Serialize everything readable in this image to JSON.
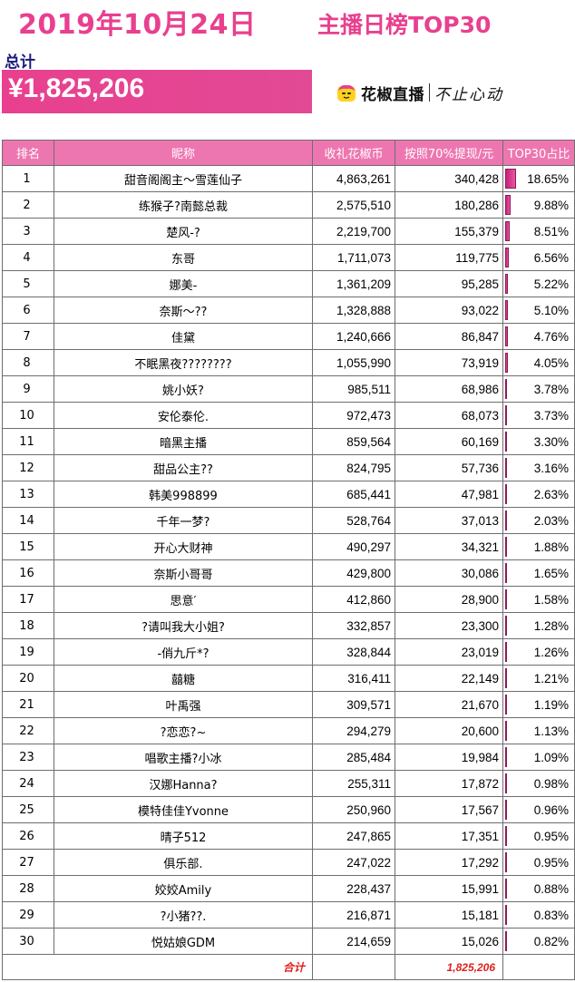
{
  "header": {
    "date_title": "2019年10月24日",
    "sub_title": "主播日榜TOP30",
    "total_label": "总计",
    "total_value": "¥1,825,206"
  },
  "brand": {
    "name": "花椒直播",
    "slogan": "不止心动",
    "logo_icon": "huajiao-logo-icon"
  },
  "colors": {
    "title_pink": "#e8408f",
    "header_row": "#ee76b0",
    "total_red": "#e0201e",
    "bar": "#c3227a"
  },
  "table": {
    "columns": [
      "排名",
      "昵称",
      "收礼花椒币",
      "按照70%提现/元",
      "TOP30占比"
    ],
    "rows": [
      {
        "rank": "1",
        "name": "甜音阁阁主～雪莲仙子",
        "coins": "4,863,261",
        "cash": "340,428",
        "share": "18.65%",
        "share_value": 18.65
      },
      {
        "rank": "2",
        "name": "练猴子?南懿总裁",
        "coins": "2,575,510",
        "cash": "180,286",
        "share": "9.88%",
        "share_value": 9.88
      },
      {
        "rank": "3",
        "name": "楚风-?",
        "coins": "2,219,700",
        "cash": "155,379",
        "share": "8.51%",
        "share_value": 8.51
      },
      {
        "rank": "4",
        "name": "东哥",
        "coins": "1,711,073",
        "cash": "119,775",
        "share": "6.56%",
        "share_value": 6.56
      },
      {
        "rank": "5",
        "name": "娜美-",
        "coins": "1,361,209",
        "cash": "95,285",
        "share": "5.22%",
        "share_value": 5.22
      },
      {
        "rank": "6",
        "name": "奈斯～??",
        "coins": "1,328,888",
        "cash": "93,022",
        "share": "5.10%",
        "share_value": 5.1
      },
      {
        "rank": "7",
        "name": "佳黛",
        "coins": "1,240,666",
        "cash": "86,847",
        "share": "4.76%",
        "share_value": 4.76
      },
      {
        "rank": "8",
        "name": "不眠黑夜????????",
        "coins": "1,055,990",
        "cash": "73,919",
        "share": "4.05%",
        "share_value": 4.05
      },
      {
        "rank": "9",
        "name": "姚小妖?",
        "coins": "985,511",
        "cash": "68,986",
        "share": "3.78%",
        "share_value": 3.78
      },
      {
        "rank": "10",
        "name": "安伦泰伦.",
        "coins": "972,473",
        "cash": "68,073",
        "share": "3.73%",
        "share_value": 3.73
      },
      {
        "rank": "11",
        "name": "暗黑主播",
        "coins": "859,564",
        "cash": "60,169",
        "share": "3.30%",
        "share_value": 3.3
      },
      {
        "rank": "12",
        "name": "甜品公主??",
        "coins": "824,795",
        "cash": "57,736",
        "share": "3.16%",
        "share_value": 3.16
      },
      {
        "rank": "13",
        "name": "韩美998899",
        "coins": "685,441",
        "cash": "47,981",
        "share": "2.63%",
        "share_value": 2.63
      },
      {
        "rank": "14",
        "name": "千年一梦?",
        "coins": "528,764",
        "cash": "37,013",
        "share": "2.03%",
        "share_value": 2.03
      },
      {
        "rank": "15",
        "name": "开心大财神",
        "coins": "490,297",
        "cash": "34,321",
        "share": "1.88%",
        "share_value": 1.88
      },
      {
        "rank": "16",
        "name": "奈斯小哥哥",
        "coins": "429,800",
        "cash": "30,086",
        "share": "1.65%",
        "share_value": 1.65
      },
      {
        "rank": "17",
        "name": "思意′",
        "coins": "412,860",
        "cash": "28,900",
        "share": "1.58%",
        "share_value": 1.58
      },
      {
        "rank": "18",
        "name": "?请叫我大小姐?",
        "coins": "332,857",
        "cash": "23,300",
        "share": "1.28%",
        "share_value": 1.28
      },
      {
        "rank": "19",
        "name": "-俏九斤*?",
        "coins": "328,844",
        "cash": "23,019",
        "share": "1.26%",
        "share_value": 1.26
      },
      {
        "rank": "20",
        "name": "囍糖",
        "coins": "316,411",
        "cash": "22,149",
        "share": "1.21%",
        "share_value": 1.21
      },
      {
        "rank": "21",
        "name": "叶禹强",
        "coins": "309,571",
        "cash": "21,670",
        "share": "1.19%",
        "share_value": 1.19
      },
      {
        "rank": "22",
        "name": "?恋恋?~",
        "coins": "294,279",
        "cash": "20,600",
        "share": "1.13%",
        "share_value": 1.13
      },
      {
        "rank": "23",
        "name": "唱歌主播?小冰",
        "coins": "285,484",
        "cash": "19,984",
        "share": "1.09%",
        "share_value": 1.09
      },
      {
        "rank": "24",
        "name": "汉娜Hanna?",
        "coins": "255,311",
        "cash": "17,872",
        "share": "0.98%",
        "share_value": 0.98
      },
      {
        "rank": "25",
        "name": "模特佳佳Yvonne",
        "coins": "250,960",
        "cash": "17,567",
        "share": "0.96%",
        "share_value": 0.96
      },
      {
        "rank": "26",
        "name": "晴子512",
        "coins": "247,865",
        "cash": "17,351",
        "share": "0.95%",
        "share_value": 0.95
      },
      {
        "rank": "27",
        "name": "俱乐部.",
        "coins": "247,022",
        "cash": "17,292",
        "share": "0.95%",
        "share_value": 0.95
      },
      {
        "rank": "28",
        "name": "姣姣Amily",
        "coins": "228,437",
        "cash": "15,991",
        "share": "0.88%",
        "share_value": 0.88
      },
      {
        "rank": "29",
        "name": "?小猪??.",
        "coins": "216,871",
        "cash": "15,181",
        "share": "0.83%",
        "share_value": 0.83
      },
      {
        "rank": "30",
        "name": "悦姑娘GDM",
        "coins": "214,659",
        "cash": "15,026",
        "share": "0.82%",
        "share_value": 0.82
      }
    ],
    "total_label": "合计",
    "total_value": "1,825,206"
  }
}
